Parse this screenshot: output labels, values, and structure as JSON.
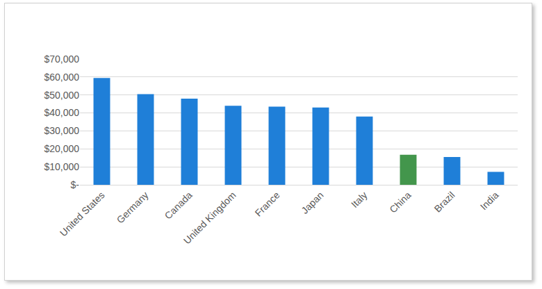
{
  "chart_data": {
    "type": "bar",
    "categories": [
      "United States",
      "Germany",
      "Canada",
      "United Kingdom",
      "France",
      "Japan",
      "Italy",
      "China",
      "Brazil",
      "India"
    ],
    "values": [
      59500,
      50500,
      48000,
      44000,
      43500,
      43000,
      38000,
      16700,
      15500,
      7200
    ],
    "colors": [
      "#1f7fd8",
      "#1f7fd8",
      "#1f7fd8",
      "#1f7fd8",
      "#1f7fd8",
      "#1f7fd8",
      "#1f7fd8",
      "#43964c",
      "#1f7fd8",
      "#1f7fd8"
    ],
    "ylim": [
      0,
      70000
    ],
    "yticks": [
      {
        "value": 0,
        "label": "$-"
      },
      {
        "value": 10000,
        "label": "$10,000"
      },
      {
        "value": 20000,
        "label": "$20,000"
      },
      {
        "value": 30000,
        "label": "$30,000"
      },
      {
        "value": 40000,
        "label": "$40,000"
      },
      {
        "value": 50000,
        "label": "$50,000"
      },
      {
        "value": 60000,
        "label": "$60,000"
      },
      {
        "value": 70000,
        "label": "$70,000"
      }
    ],
    "grid": true
  }
}
